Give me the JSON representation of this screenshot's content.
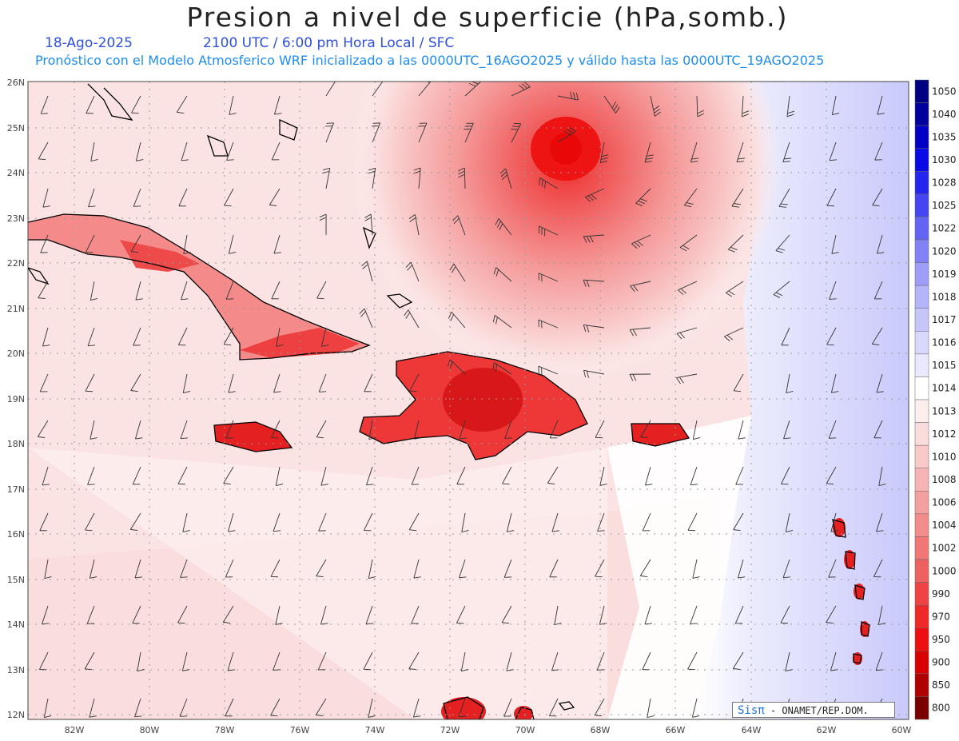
{
  "title": "Presion a nivel de superficie (hPa,somb.)",
  "date": "18-Ago-2025",
  "time_line": "2100 UTC / 6:00 pm Hora Local / SFC",
  "model_line": "Pronóstico con el Modelo Atmosferico WRF inicializado a las 0000UTC_16AGO2025 y válido hasta las  0000UTC_19AGO2025",
  "credit": {
    "brand": "Sisπ",
    "org": "- ONAMET/REP.DOM."
  },
  "map": {
    "lon_range": [
      -83.2,
      -60
    ],
    "lat_range": [
      11.9,
      26.1
    ],
    "lon_ticks": [
      "82W",
      "80W",
      "78W",
      "76W",
      "74W",
      "72W",
      "70W",
      "68W",
      "66W",
      "64W",
      "62W",
      "60W"
    ],
    "lat_ticks": [
      "26N",
      "25N",
      "24N",
      "23N",
      "22N",
      "21N",
      "20N",
      "19N",
      "18N",
      "17N",
      "16N",
      "15N",
      "14N",
      "13N",
      "12N"
    ],
    "grid": true
  },
  "legend": {
    "levels": [
      "1050",
      "1040",
      "1035",
      "1030",
      "1028",
      "1025",
      "1022",
      "1020",
      "1019",
      "1018",
      "1017",
      "1016",
      "1015",
      "1014",
      "1013",
      "1012",
      "1010",
      "1008",
      "1006",
      "1004",
      "1002",
      "1000",
      "990",
      "970",
      "950",
      "900",
      "850",
      "800"
    ],
    "colors": [
      "#000080",
      "#00009c",
      "#0000c4",
      "#0a0ae6",
      "#2525f0",
      "#4545f2",
      "#6464f4",
      "#8282f6",
      "#9e9ef8",
      "#b4b4fa",
      "#c6c6fb",
      "#d8d8fc",
      "#e8e8fe",
      "#ffffff",
      "#fdeeee",
      "#fbdcdc",
      "#f9c8c8",
      "#f7b4b4",
      "#f5a0a0",
      "#f38c8c",
      "#f17676",
      "#ef6060",
      "#f04444",
      "#f02828",
      "#ee1010",
      "#d80000",
      "#b00000",
      "#7a0000"
    ]
  },
  "storm_center": {
    "lon": -68.9,
    "lat": 24.5
  }
}
